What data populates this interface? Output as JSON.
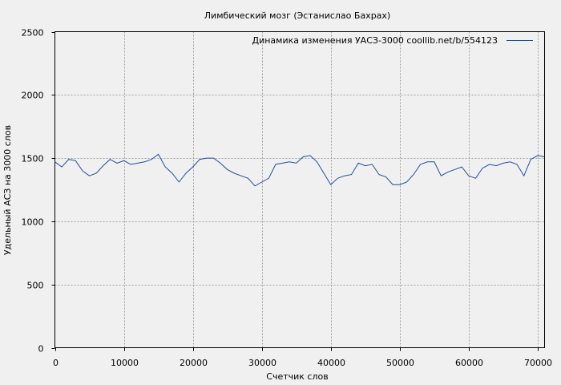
{
  "chart_data": {
    "type": "line",
    "title": "Лимбический мозг (Эстанислао Бахрах)",
    "xlabel": "Счетчик слов",
    "ylabel": "Удельный АСЗ на 3000 слов",
    "xlim": [
      0,
      71000
    ],
    "ylim": [
      0,
      2500
    ],
    "xticks": [
      0,
      10000,
      20000,
      30000,
      40000,
      50000,
      60000,
      70000
    ],
    "yticks": [
      0,
      500,
      1000,
      1500,
      2000,
      2500
    ],
    "grid": true,
    "legend_position": "top-right",
    "series": [
      {
        "name": "Динамика изменения УАСЗ-3000  coollib.net/b/554123",
        "color": "#1f4e9c",
        "x": [
          0,
          1000,
          2000,
          3000,
          4000,
          5000,
          6000,
          7000,
          8000,
          9000,
          10000,
          11000,
          12000,
          13000,
          14000,
          15000,
          16000,
          17000,
          18000,
          19000,
          20000,
          21000,
          22000,
          23000,
          24000,
          25000,
          26000,
          27000,
          28000,
          29000,
          30000,
          31000,
          32000,
          33000,
          34000,
          35000,
          36000,
          37000,
          38000,
          39000,
          40000,
          41000,
          42000,
          43000,
          44000,
          45000,
          46000,
          47000,
          48000,
          49000,
          50000,
          51000,
          52000,
          53000,
          54000,
          55000,
          56000,
          57000,
          58000,
          59000,
          60000,
          61000,
          62000,
          63000,
          64000,
          65000,
          66000,
          67000,
          68000,
          69000,
          70000,
          71000
        ],
        "y": [
          1470,
          1430,
          1490,
          1480,
          1400,
          1360,
          1380,
          1440,
          1490,
          1460,
          1480,
          1450,
          1460,
          1470,
          1490,
          1530,
          1430,
          1380,
          1310,
          1380,
          1430,
          1490,
          1500,
          1500,
          1460,
          1410,
          1380,
          1360,
          1340,
          1280,
          1310,
          1340,
          1450,
          1460,
          1470,
          1460,
          1510,
          1520,
          1470,
          1380,
          1290,
          1340,
          1360,
          1370,
          1460,
          1440,
          1450,
          1370,
          1350,
          1290,
          1290,
          1310,
          1370,
          1450,
          1470,
          1470,
          1360,
          1390,
          1410,
          1430,
          1360,
          1340,
          1420,
          1450,
          1440,
          1460,
          1470,
          1450,
          1360,
          1490,
          1520,
          1510
        ]
      }
    ]
  }
}
